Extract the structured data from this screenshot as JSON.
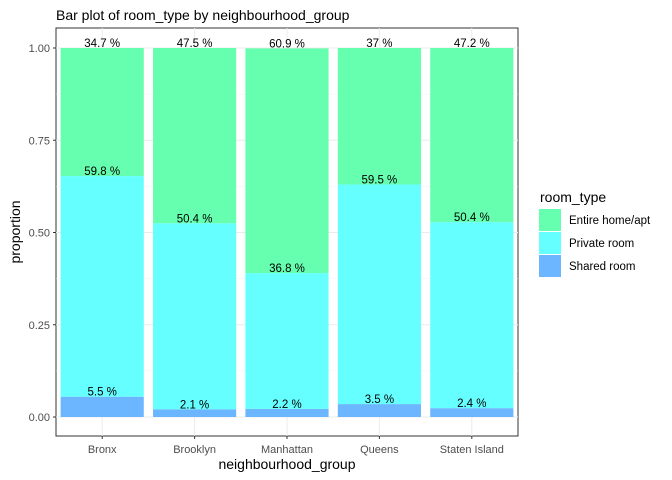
{
  "chart_data": {
    "type": "bar",
    "stacked": true,
    "title": "Bar plot of room_type by neighbourhood_group",
    "xlabel": "neighbourhood_group",
    "ylabel": "proportion",
    "ylim": [
      0,
      1
    ],
    "yticks": [
      "0.00",
      "0.25",
      "0.50",
      "0.75",
      "1.00"
    ],
    "ytick_values": [
      0,
      0.25,
      0.5,
      0.75,
      1.0
    ],
    "categories": [
      "Bronx",
      "Brooklyn",
      "Manhattan",
      "Queens",
      "Staten Island"
    ],
    "grid": true,
    "legend": {
      "title": "room_type",
      "position": "right"
    },
    "series": [
      {
        "name": "Shared room",
        "color": "#6cb6ff",
        "values": [
          0.055,
          0.021,
          0.022,
          0.035,
          0.024
        ],
        "labels": [
          "5.5 %",
          "2.1 %",
          "2.2 %",
          "3.5 %",
          "2.4 %"
        ]
      },
      {
        "name": "Private room",
        "color": "#66ffff",
        "values": [
          0.598,
          0.504,
          0.368,
          0.595,
          0.504
        ],
        "labels": [
          "59.8 %",
          "50.4 %",
          "36.8 %",
          "59.5 %",
          "50.4 %"
        ]
      },
      {
        "name": "Entire home/apt",
        "color": "#66ffb0",
        "values": [
          0.347,
          0.475,
          0.609,
          0.37,
          0.472
        ],
        "labels": [
          "34.7 %",
          "47.5 %",
          "60.9 %",
          "37 %",
          "47.2 %"
        ]
      }
    ],
    "legend_order": [
      "Entire home/apt",
      "Private room",
      "Shared room"
    ]
  }
}
